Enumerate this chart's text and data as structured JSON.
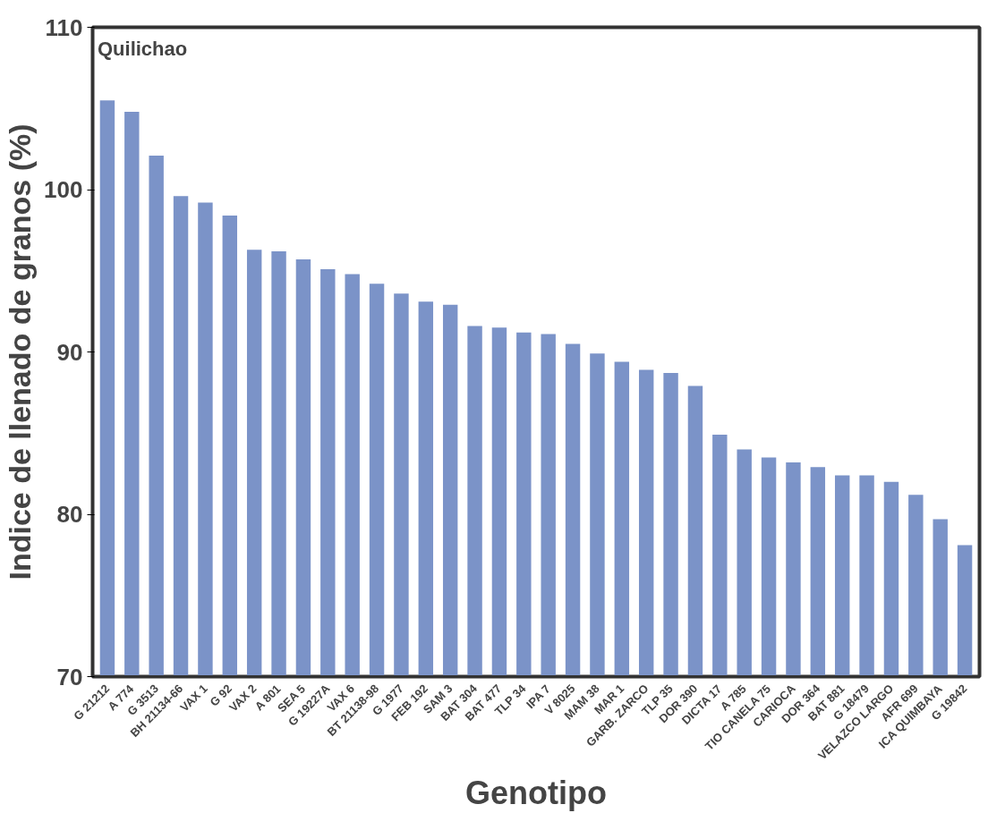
{
  "chart_data": {
    "type": "bar",
    "xlabel": "Genotipo",
    "ylabel": "Indice de llenado de granos (%)",
    "annotations": [
      "Quilichao"
    ],
    "categories": [
      "G 21212",
      "A 774",
      "G 3513",
      "BH 21134-66",
      "VAX 1",
      "G 92",
      "VAX 2",
      "A 801",
      "SEA 5",
      "G 19227A",
      "VAX 6",
      "BT 21138-98",
      "G 1977",
      "FEB 192",
      "SAM 3",
      "BAT 304",
      "BAT 477",
      "TLP 34",
      "IPA 7",
      "V 8025",
      "MAM 38",
      "MAR 1",
      "GARB. ZARCO",
      "TLP 35",
      "DOR 390",
      "DICTA 17",
      "A 785",
      "TIO CANELA 75",
      "CARIOCA",
      "DOR 364",
      "BAT 881",
      "G 18479",
      "VELAZCO LARGO",
      "AFR 699",
      "ICA QUIMBAYA",
      "G 19842"
    ],
    "values": [
      105.5,
      104.8,
      102.1,
      99.6,
      99.2,
      98.4,
      96.3,
      96.2,
      95.7,
      95.1,
      94.8,
      94.2,
      93.6,
      93.1,
      92.9,
      91.6,
      91.5,
      91.2,
      91.1,
      90.5,
      89.9,
      89.4,
      88.9,
      88.7,
      87.9,
      84.9,
      84.0,
      83.5,
      83.2,
      82.9,
      82.4,
      82.4,
      82.0,
      81.2,
      79.7,
      78.1
    ],
    "color": "#7b93c8",
    "ylim": [
      70,
      110
    ],
    "yticks": [
      70,
      80,
      90,
      100,
      110
    ],
    "grid": false
  }
}
